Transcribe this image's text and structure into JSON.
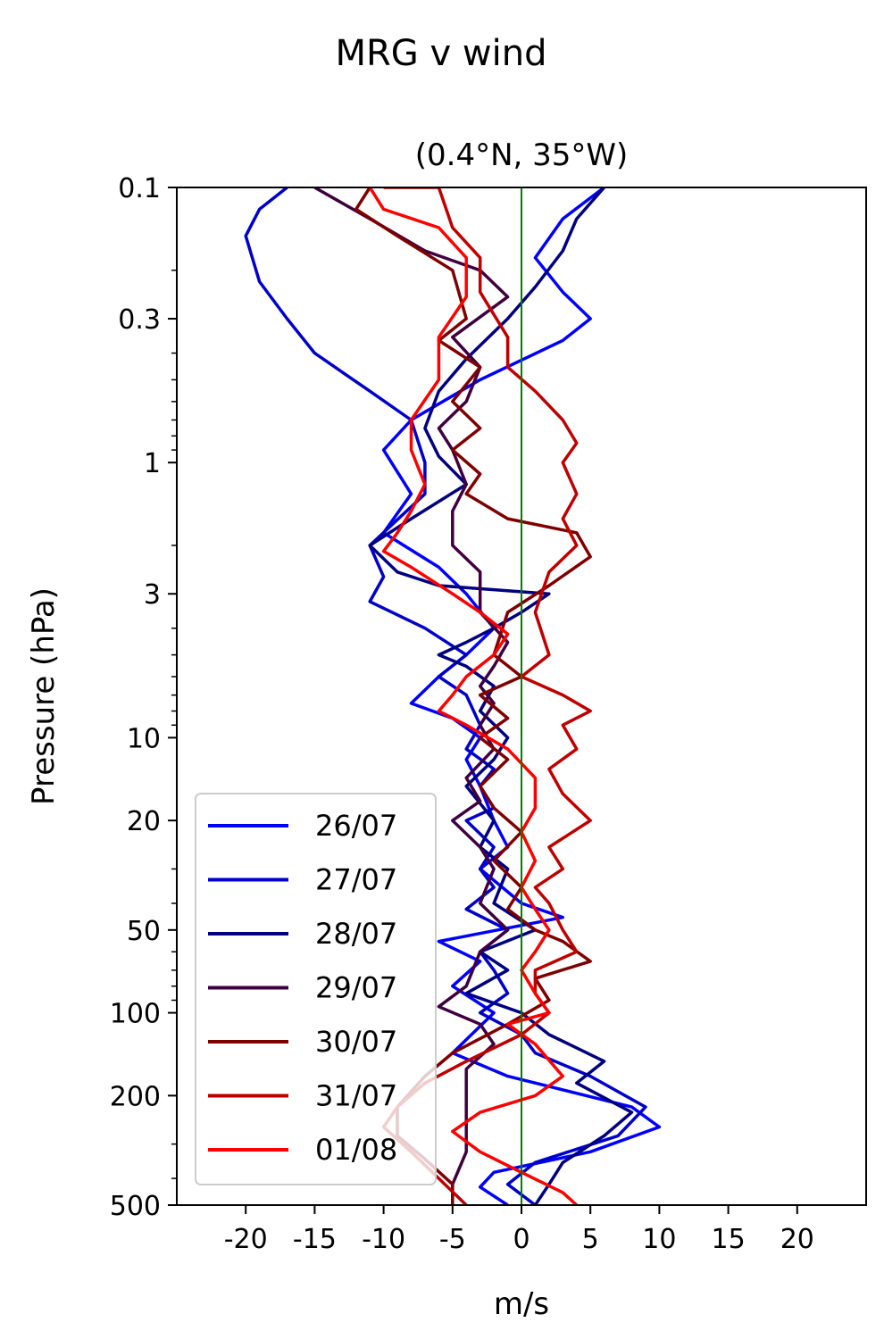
{
  "chart_data": {
    "type": "line",
    "title": "MRG v wind",
    "subtitle": "(0.4°N, 35°W)",
    "xlabel": "m/s",
    "ylabel": "Pressure (hPa)",
    "xlim": [
      -25,
      25
    ],
    "ylim": [
      500,
      0.1
    ],
    "yscale": "log",
    "xticks": [
      -20,
      -15,
      -10,
      -5,
      0,
      5,
      10,
      15,
      20
    ],
    "xtick_labels": [
      "-20",
      "-15",
      "-10",
      "-5",
      "0",
      "5",
      "10",
      "15",
      "20"
    ],
    "yticks": [
      0.1,
      0.3,
      1,
      3,
      10,
      20,
      50,
      100,
      200,
      500
    ],
    "ytick_labels": [
      "0.1",
      "0.3",
      "1",
      "3",
      "10",
      "20",
      "50",
      "100",
      "200",
      "500"
    ],
    "grid": false,
    "reference_line": {
      "x": 0,
      "color": "#008000"
    },
    "legend_position": "lower-left",
    "series": [
      {
        "name": "26/07",
        "color": "#0000ff",
        "points": [
          [
            6,
            0.1
          ],
          [
            3,
            0.13
          ],
          [
            1,
            0.18
          ],
          [
            3,
            0.24
          ],
          [
            5,
            0.3
          ],
          [
            3,
            0.36
          ],
          [
            -3,
            0.5
          ],
          [
            -8,
            0.7
          ],
          [
            -10,
            0.9
          ],
          [
            -8,
            1.3
          ],
          [
            -10,
            1.8
          ],
          [
            -6,
            2.4
          ],
          [
            -4,
            3.0
          ],
          [
            -2,
            4.0
          ],
          [
            -4,
            5.0
          ],
          [
            -6,
            6.0
          ],
          [
            -8,
            7.5
          ],
          [
            -5,
            8.5
          ],
          [
            -3,
            10
          ],
          [
            -4,
            12
          ],
          [
            -3,
            15
          ],
          [
            -2,
            20
          ],
          [
            -1,
            25
          ],
          [
            -3,
            30
          ],
          [
            0,
            40
          ],
          [
            3,
            45
          ],
          [
            -6,
            55
          ],
          [
            -3,
            65
          ],
          [
            -5,
            80
          ],
          [
            -2,
            100
          ],
          [
            -5,
            140
          ],
          [
            -1,
            170
          ],
          [
            8,
            220
          ],
          [
            10,
            260
          ],
          [
            5,
            320
          ],
          [
            -2,
            380
          ],
          [
            -3,
            430
          ],
          [
            -1,
            500
          ]
        ]
      },
      {
        "name": "27/07",
        "color": "#0000cc",
        "points": [
          [
            -17,
            0.1
          ],
          [
            -19,
            0.12
          ],
          [
            -20,
            0.15
          ],
          [
            -19,
            0.22
          ],
          [
            -17,
            0.3
          ],
          [
            -15,
            0.4
          ],
          [
            -11,
            0.55
          ],
          [
            -8,
            0.7
          ],
          [
            -7,
            1.0
          ],
          [
            -7,
            1.3
          ],
          [
            -11,
            2.0
          ],
          [
            -10,
            2.6
          ],
          [
            -11,
            3.2
          ],
          [
            -7,
            4.0
          ],
          [
            -4,
            5.0
          ],
          [
            -6,
            6.0
          ],
          [
            -4,
            7.0
          ],
          [
            -3,
            9
          ],
          [
            -4,
            11
          ],
          [
            -2,
            13
          ],
          [
            -3,
            15
          ],
          [
            -2,
            18
          ],
          [
            -4,
            20
          ],
          [
            -2,
            25
          ],
          [
            -3,
            30
          ],
          [
            -2,
            35
          ],
          [
            -4,
            42
          ],
          [
            -1,
            50
          ],
          [
            -3,
            60
          ],
          [
            -2,
            70
          ],
          [
            -1,
            85
          ],
          [
            -3,
            100
          ],
          [
            0,
            120
          ],
          [
            1,
            140
          ],
          [
            5,
            170
          ],
          [
            9,
            220
          ],
          [
            7,
            280
          ],
          [
            1,
            350
          ],
          [
            -1,
            420
          ],
          [
            1,
            500
          ]
        ]
      },
      {
        "name": "28/07",
        "color": "#000080",
        "points": [
          [
            6,
            0.1
          ],
          [
            4,
            0.13
          ],
          [
            3,
            0.17
          ],
          [
            1,
            0.23
          ],
          [
            -1,
            0.3
          ],
          [
            -4,
            0.42
          ],
          [
            -6,
            0.55
          ],
          [
            -7,
            0.75
          ],
          [
            -6,
            0.95
          ],
          [
            -4,
            1.2
          ],
          [
            -8,
            1.6
          ],
          [
            -11,
            2.0
          ],
          [
            -9,
            2.5
          ],
          [
            -6,
            2.8
          ],
          [
            2,
            3.0
          ],
          [
            0,
            3.5
          ],
          [
            -2,
            4.0
          ],
          [
            -4,
            4.5
          ],
          [
            -6,
            5.0
          ],
          [
            -4,
            5.5
          ],
          [
            -2,
            6.5
          ],
          [
            -3,
            8
          ],
          [
            -1,
            10
          ],
          [
            -2,
            12
          ],
          [
            -4,
            15
          ],
          [
            -2,
            20
          ],
          [
            -3,
            25
          ],
          [
            -1,
            30
          ],
          [
            -2,
            40
          ],
          [
            1,
            50
          ],
          [
            -3,
            60
          ],
          [
            -1,
            70
          ],
          [
            -4,
            85
          ],
          [
            0,
            100
          ],
          [
            2,
            120
          ],
          [
            6,
            150
          ],
          [
            4,
            180
          ],
          [
            8,
            230
          ],
          [
            6,
            280
          ],
          [
            3,
            350
          ],
          [
            2,
            420
          ],
          [
            1,
            500
          ]
        ]
      },
      {
        "name": "29/07",
        "color": "#400040",
        "points": [
          [
            -15,
            0.1
          ],
          [
            -11,
            0.13
          ],
          [
            -7,
            0.17
          ],
          [
            -3,
            0.2
          ],
          [
            -1,
            0.25
          ],
          [
            -5,
            0.35
          ],
          [
            -3,
            0.45
          ],
          [
            -4,
            0.6
          ],
          [
            -6,
            0.75
          ],
          [
            -5,
            0.9
          ],
          [
            -4,
            1.2
          ],
          [
            -5,
            1.5
          ],
          [
            -5,
            2.0
          ],
          [
            -3,
            2.5
          ],
          [
            -3,
            3.5
          ],
          [
            -1,
            4.5
          ],
          [
            -2,
            5.5
          ],
          [
            -3,
            6.5
          ],
          [
            -2,
            7.5
          ],
          [
            -3,
            9
          ],
          [
            -2,
            11
          ],
          [
            -4,
            14
          ],
          [
            -3,
            17
          ],
          [
            -5,
            20
          ],
          [
            -3,
            25
          ],
          [
            -2,
            30
          ],
          [
            -3,
            40
          ],
          [
            -1,
            50
          ],
          [
            -3,
            60
          ],
          [
            -4,
            80
          ],
          [
            -6,
            95
          ],
          [
            -3,
            110
          ],
          [
            -2,
            130
          ],
          [
            -4,
            160
          ],
          [
            -4,
            200
          ],
          [
            -4,
            260
          ],
          [
            -4,
            320
          ],
          [
            -5,
            420
          ],
          [
            -5,
            500
          ]
        ]
      },
      {
        "name": "30/07",
        "color": "#800000",
        "points": [
          [
            -11,
            0.1
          ],
          [
            -12,
            0.12
          ],
          [
            -9,
            0.15
          ],
          [
            -5,
            0.2
          ],
          [
            -4,
            0.3
          ],
          [
            -6,
            0.36
          ],
          [
            -3,
            0.45
          ],
          [
            -5,
            0.6
          ],
          [
            -3,
            0.75
          ],
          [
            -5,
            0.9
          ],
          [
            -3,
            1.1
          ],
          [
            -4,
            1.3
          ],
          [
            -1,
            1.6
          ],
          [
            4,
            1.8
          ],
          [
            5,
            2.2
          ],
          [
            2,
            2.8
          ],
          [
            -1,
            3.5
          ],
          [
            -2,
            5
          ],
          [
            0,
            6
          ],
          [
            -3,
            7
          ],
          [
            -1,
            8.5
          ],
          [
            -3,
            10
          ],
          [
            -1,
            12
          ],
          [
            -3,
            15
          ],
          [
            -2,
            18
          ],
          [
            0,
            22
          ],
          [
            -2,
            28
          ],
          [
            0,
            35
          ],
          [
            -1,
            42
          ],
          [
            1,
            50
          ],
          [
            3,
            55
          ],
          [
            5,
            65
          ],
          [
            1,
            75
          ],
          [
            2,
            90
          ],
          [
            -1,
            110
          ],
          [
            -5,
            140
          ],
          [
            -7,
            170
          ],
          [
            -9,
            220
          ],
          [
            -9,
            280
          ],
          [
            -7,
            340
          ],
          [
            -5,
            420
          ],
          [
            -5,
            500
          ]
        ]
      },
      {
        "name": "31/07",
        "color": "#c00000",
        "points": [
          [
            -10,
            0.1
          ],
          [
            -6,
            0.1
          ],
          [
            -5,
            0.14
          ],
          [
            -3,
            0.18
          ],
          [
            -3,
            0.24
          ],
          [
            -1,
            0.35
          ],
          [
            -1,
            0.45
          ],
          [
            1,
            0.55
          ],
          [
            3,
            0.7
          ],
          [
            4,
            0.85
          ],
          [
            3,
            1.0
          ],
          [
            4,
            1.3
          ],
          [
            3,
            1.6
          ],
          [
            4,
            2.0
          ],
          [
            2,
            2.5
          ],
          [
            1,
            3.5
          ],
          [
            2,
            5
          ],
          [
            0,
            6
          ],
          [
            3,
            7
          ],
          [
            5,
            8
          ],
          [
            3,
            9
          ],
          [
            4,
            11
          ],
          [
            2,
            13
          ],
          [
            3,
            16
          ],
          [
            5,
            20
          ],
          [
            2,
            25
          ],
          [
            3,
            30
          ],
          [
            1,
            35
          ],
          [
            2,
            40
          ],
          [
            3,
            50
          ],
          [
            4,
            60
          ],
          [
            1,
            70
          ],
          [
            1,
            85
          ],
          [
            2,
            100
          ],
          [
            0,
            120
          ],
          [
            -4,
            150
          ],
          [
            -7,
            180
          ],
          [
            -9,
            220
          ],
          [
            -10,
            260
          ],
          [
            -8,
            320
          ],
          [
            -6,
            400
          ],
          [
            -4,
            500
          ]
        ]
      },
      {
        "name": "01/08",
        "color": "#ff0000",
        "points": [
          [
            -11,
            0.1
          ],
          [
            -10,
            0.12
          ],
          [
            -6,
            0.14
          ],
          [
            -4,
            0.18
          ],
          [
            -4,
            0.25
          ],
          [
            -6,
            0.35
          ],
          [
            -6,
            0.5
          ],
          [
            -8,
            0.7
          ],
          [
            -8,
            0.9
          ],
          [
            -7,
            1.2
          ],
          [
            -8,
            1.5
          ],
          [
            -9,
            1.8
          ],
          [
            -10,
            2.1
          ],
          [
            -8,
            2.4
          ],
          [
            -5,
            3.0
          ],
          [
            -3,
            3.5
          ],
          [
            -1,
            4.2
          ],
          [
            -2,
            5
          ],
          [
            -4,
            6
          ],
          [
            -5,
            7
          ],
          [
            -6,
            8
          ],
          [
            -4,
            9
          ],
          [
            -1,
            11
          ],
          [
            1,
            14
          ],
          [
            1,
            18
          ],
          [
            0,
            22
          ],
          [
            1,
            28
          ],
          [
            0,
            35
          ],
          [
            1,
            42
          ],
          [
            2,
            50
          ],
          [
            1,
            60
          ],
          [
            0,
            70
          ],
          [
            1,
            85
          ],
          [
            2,
            100
          ],
          [
            -1,
            110
          ],
          [
            1,
            130
          ],
          [
            3,
            170
          ],
          [
            1,
            200
          ],
          [
            -3,
            230
          ],
          [
            -5,
            270
          ],
          [
            -3,
            320
          ],
          [
            0,
            380
          ],
          [
            3,
            450
          ],
          [
            4,
            500
          ]
        ]
      }
    ]
  }
}
